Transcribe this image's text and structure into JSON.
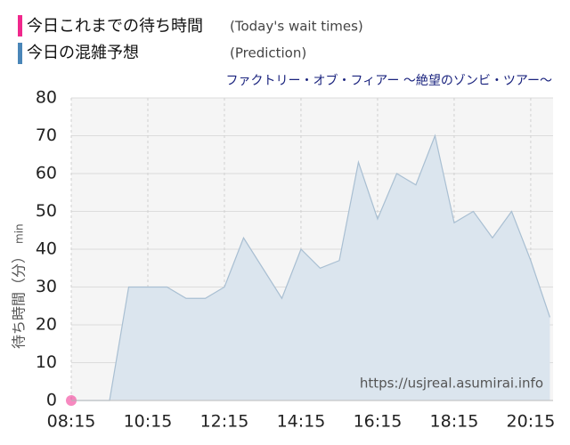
{
  "chart_data": {
    "type": "area",
    "legend": [
      {
        "label": "今日これまでの待ち時間",
        "note": "(Today's wait times)",
        "color": "#f0288c"
      },
      {
        "label": "今日の混雑予想",
        "note": "(Prediction)",
        "color": "#4a86b8"
      }
    ],
    "subtitle": "ファクトリー・オブ・フィアー ～絶望のゾンビ・ツアー～",
    "ylabel": "待ち時間（分）",
    "yunit": "min",
    "watermark": "https://usjreal.asumirai.info",
    "xlim": [
      "08:15",
      "20:50"
    ],
    "xticks": [
      "08:15",
      "10:15",
      "12:15",
      "14:15",
      "16:15",
      "18:15",
      "20:15"
    ],
    "ylim": [
      0,
      80
    ],
    "yticks": [
      0,
      10,
      20,
      30,
      40,
      50,
      60,
      70,
      80
    ],
    "grid": true,
    "series": [
      {
        "name": "今日の混雑予想",
        "color": "#4a86b8",
        "x": [
          "08:15",
          "09:15",
          "09:45",
          "10:15",
          "10:45",
          "11:15",
          "11:45",
          "12:15",
          "12:45",
          "13:15",
          "13:45",
          "14:15",
          "14:45",
          "15:15",
          "15:45",
          "16:15",
          "16:45",
          "17:15",
          "17:45",
          "18:15",
          "18:45",
          "19:15",
          "19:45",
          "20:15",
          "20:45"
        ],
        "values": [
          0,
          0,
          30,
          30,
          30,
          27,
          27,
          30,
          43,
          35,
          27,
          40,
          35,
          37,
          63,
          48,
          60,
          57,
          70,
          47,
          50,
          43,
          50,
          37,
          22
        ]
      },
      {
        "name": "今日これまでの待ち時間",
        "color": "#f0288c",
        "x": [
          "08:15"
        ],
        "values": [
          0
        ]
      }
    ]
  }
}
